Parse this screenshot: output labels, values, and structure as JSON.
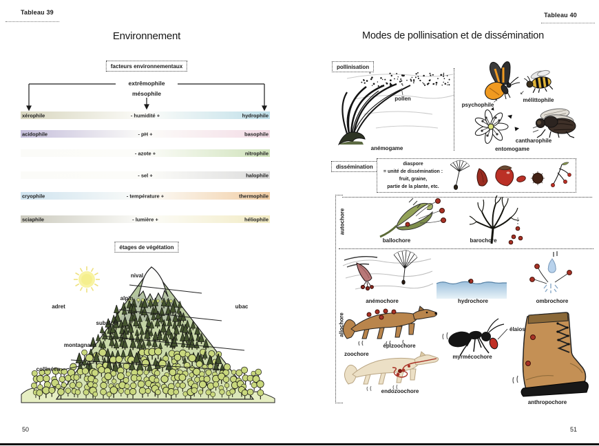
{
  "page_left": {
    "tab_label": "Tableau 39",
    "title": "Environnement",
    "factors_box_label": "facteurs environnementaux",
    "extremophile_label": "extrêmophile",
    "mesophile_label": "mésophile",
    "gradients": [
      {
        "left": "xérophile",
        "center": "- humidité +",
        "right": "hydrophile",
        "color_left": "#d8d6bf",
        "color_right": "#bfdfe9"
      },
      {
        "left": "acidophile",
        "center": "- pH +",
        "right": "basophile",
        "color_left": "#c5bedb",
        "color_right": "#f3dce6"
      },
      {
        "left": "",
        "center": "- azote +",
        "right": "nitrophile",
        "color_left": "#fbfbf8",
        "color_right": "#cfe2ba"
      },
      {
        "left": "",
        "center": "- sel +",
        "right": "halophile",
        "color_left": "#fbfbf8",
        "color_right": "#dcdcdc"
      },
      {
        "left": "cryophile",
        "center": "- température +",
        "right": "thermophile",
        "color_left": "#cfe3ef",
        "color_right": "#f1cda4"
      },
      {
        "left": "sciaphile",
        "center": "- lumière +",
        "right": "héliophile",
        "color_left": "#cbcabe",
        "color_right": "#f2ebc4"
      }
    ],
    "vegetation_box_label": "étages de végétation",
    "mountain": {
      "nival": "nival",
      "alpin": "alpin",
      "subalpin": "subalpin",
      "montagnard": "montagnard",
      "collineen": "collinéen",
      "adret": "adret",
      "ubac": "ubac"
    },
    "page_number": "50"
  },
  "page_right": {
    "tab_label": "Tableau 40",
    "title": "Modes de pollinisation et de dissémination",
    "pollination": {
      "box_label": "pollinisation",
      "pollen_label": "pollen",
      "anemogame_label": "anémogame",
      "psychophile_label": "psychophile",
      "melittophile_label": "mélittophile",
      "cantharophile_label": "cantharophile",
      "entomogame_label": "entomogame",
      "arrow_up": "▲",
      "arrow_left": "◀",
      "arrow_right": "▶",
      "arrow_ne": "↗",
      "arrow_sw": "↙"
    },
    "dissemination": {
      "box_label": "dissémination",
      "diaspore_lines": [
        "diaspore",
        "= unité de dissémination :",
        "fruit, graine,",
        "partie de la plante, etc."
      ],
      "autochore_label": "autochore",
      "ballochore_label": "ballochore",
      "barochore_label": "barochore",
      "allochore_label": "allochore",
      "anemochore_label": "anémochore",
      "hydrochore_label": "hydrochore",
      "ombrochore_label": "ombrochore",
      "zoochore_label": "zoochore",
      "epizoochore_label": "épizoochore",
      "myrmecochore_label": "myrmécochore",
      "elaiosome_label": "élaiosome",
      "endozoochore_label": "endozoochore",
      "anthropochore_label": "anthropochore"
    },
    "page_number": "51"
  },
  "colors": {
    "seed_red": "#a93226",
    "water_blue": "#9cc0dc",
    "butterfly_orange": "#f09a20",
    "conifer_green": "#44542e",
    "broadleaf_green": "#c9d87d",
    "boot_tan": "#c49055",
    "ink": "#1a1a1a"
  }
}
